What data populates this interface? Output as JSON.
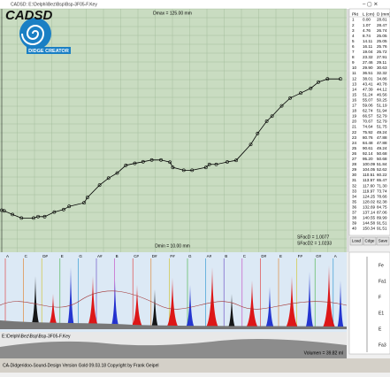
{
  "window_title": "CADSD: E:\\Delphi\\Bez\\Bsp\\Bsp-3F05-F.Key",
  "logo": {
    "name": "CADSD",
    "subtitle": "DIDGE CREATOR"
  },
  "chart_data": {
    "type": "line",
    "color": "#000000",
    "ylim": [
      10,
      125
    ],
    "annotations": [
      "Dmax = 125.00 mm",
      "Dmin = 10.00 mm",
      "SFacD = 1.0077",
      "SFacD2 = 1.0233"
    ],
    "x": [
      0.0,
      1.07,
      4.76,
      8.74,
      14.11,
      16.11,
      19.04,
      23.32,
      27.46,
      29.9,
      36.51,
      38.01,
      43.41,
      47.39,
      51.24,
      55.07,
      59.06,
      62.74,
      66.57,
      70.67,
      74.64,
      75.92,
      80.76,
      84.48,
      90.61,
      92.14,
      95.2,
      100.09,
      104.05,
      110.51,
      113.57,
      117.6,
      119.97,
      124.25,
      128.02,
      132.69,
      137.14,
      140.55,
      144.58,
      150.34
    ],
    "values": [
      28.81,
      28.47,
      26.74,
      25.05,
      25.05,
      25.76,
      25.72,
      27.91,
      29.11,
      30.63,
      32.32,
      34.86,
      40.78,
      44.12,
      46.56,
      50.25,
      51.19,
      51.94,
      52.79,
      52.79,
      51.75,
      49.24,
      47.88,
      47.88,
      49.24,
      50.68,
      50.68,
      51.84,
      52.62,
      60.22,
      65.47,
      71.3,
      73.74,
      78.66,
      82.38,
      84.75,
      87.06,
      89.99,
      91.51,
      91.51
    ]
  },
  "table": {
    "header": [
      "Pkt",
      "L (cm)",
      "D (mm)"
    ],
    "rows": [
      [
        "1",
        "0.00",
        "28.81"
      ],
      [
        "2",
        "1.07",
        "28.47"
      ],
      [
        "3",
        "4.76",
        "26.74"
      ],
      [
        "4",
        "8.74",
        "25.05"
      ],
      [
        "5",
        "14.11",
        "25.05"
      ],
      [
        "6",
        "16.11",
        "25.76"
      ],
      [
        "7",
        "19.04",
        "25.72"
      ],
      [
        "8",
        "23.32",
        "27.91"
      ],
      [
        "9",
        "27.46",
        "29.11"
      ],
      [
        "10",
        "29.90",
        "30.63"
      ],
      [
        "11",
        "36.51",
        "32.32"
      ],
      [
        "12",
        "38.01",
        "34.86"
      ],
      [
        "13",
        "43.41",
        "40.78"
      ],
      [
        "14",
        "47.39",
        "44.12"
      ],
      [
        "15",
        "51.24",
        "46.56"
      ],
      [
        "16",
        "55.07",
        "50.25"
      ],
      [
        "17",
        "59.06",
        "51.19"
      ],
      [
        "18",
        "62.74",
        "51.94"
      ],
      [
        "19",
        "66.57",
        "52.79"
      ],
      [
        "20",
        "70.67",
        "52.79"
      ],
      [
        "21",
        "74.64",
        "51.75"
      ],
      [
        "22",
        "75.92",
        "49.24"
      ],
      [
        "23",
        "80.76",
        "47.88"
      ],
      [
        "24",
        "84.48",
        "47.88"
      ],
      [
        "25",
        "90.61",
        "49.24"
      ],
      [
        "26",
        "92.14",
        "50.68"
      ],
      [
        "27",
        "95.20",
        "50.68"
      ],
      [
        "28",
        "100.09",
        "51.84"
      ],
      [
        "29",
        "104.05",
        "52.62"
      ],
      [
        "30",
        "110.51",
        "60.22"
      ],
      [
        "31",
        "113.57",
        "65.47"
      ],
      [
        "32",
        "117.60",
        "71.30"
      ],
      [
        "33",
        "119.97",
        "73.74"
      ],
      [
        "34",
        "124.25",
        "78.66"
      ],
      [
        "35",
        "128.02",
        "82.38"
      ],
      [
        "36",
        "132.69",
        "84.75"
      ],
      [
        "37",
        "137.14",
        "87.06"
      ],
      [
        "38",
        "140.55",
        "89.99"
      ],
      [
        "39",
        "144.58",
        "91.51"
      ],
      [
        "40",
        "150.34",
        "91.51"
      ]
    ]
  },
  "buttons": [
    "Load",
    "Cdge",
    "Save"
  ],
  "spectrum": {
    "notes": [
      "A",
      "C",
      "D#",
      "E",
      "G",
      "A#",
      "B",
      "C#",
      "D#",
      "F#",
      "G",
      "A#",
      "B",
      "C",
      "D#",
      "E",
      "F#",
      "G#",
      "A"
    ],
    "scale_labels": [
      "Fe",
      "Fa1",
      "F",
      "E1",
      "E",
      "Fa3"
    ]
  },
  "file_path": "E:\\Delphi\\Bez\\Bsp\\Bsp-3F05-F.Key",
  "volume": "Volumen = 39.82 ml",
  "status": "CA-Didgeridoo-Sound-Design Version Gold 09.03.18 Copyright by Frank Geipel"
}
